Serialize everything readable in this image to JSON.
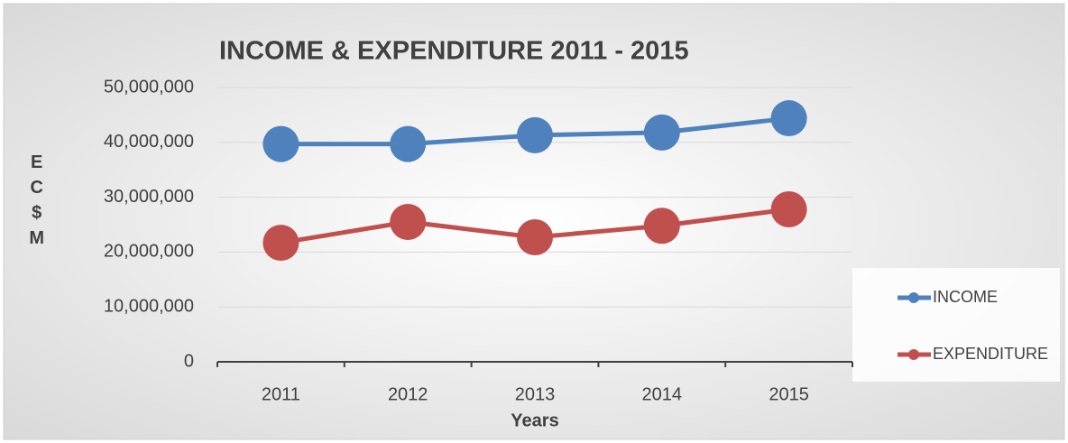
{
  "chart_data": {
    "type": "line",
    "title": "INCOME & EXPENDITURE 2011 - 2015",
    "x_label": "Years",
    "y_label": "EC$M",
    "categories": [
      "2011",
      "2012",
      "2013",
      "2014",
      "2015"
    ],
    "series": [
      {
        "name": "INCOME",
        "color": "#4f81bd",
        "values": [
          39700000,
          39700000,
          41300000,
          41800000,
          44400000
        ]
      },
      {
        "name": "EXPENDITURE",
        "color": "#c0504d",
        "values": [
          21700000,
          25500000,
          22700000,
          24800000,
          27800000
        ]
      }
    ],
    "ylim": [
      0,
      50000000
    ],
    "yticks": [
      0,
      {
        "value": 10000000,
        "label": "10,000,000"
      },
      {
        "value": 20000000,
        "label": "20,000,000"
      },
      {
        "value": 30000000,
        "label": "30,000,000"
      },
      {
        "value": 40000000,
        "label": "40,000,000"
      },
      {
        "value": 50000000,
        "label": "50,000,000"
      }
    ],
    "grid": true,
    "legend": "right"
  }
}
